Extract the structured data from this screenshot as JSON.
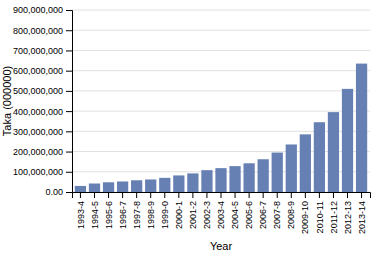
{
  "chart_data": {
    "type": "bar",
    "categories": [
      "1993-4",
      "1994-5",
      "1995-6",
      "1996-7",
      "1997-8",
      "1998-9",
      "1999-0",
      "2000-1",
      "2001-2",
      "2002-3",
      "2003-4",
      "2004-5",
      "2005-6",
      "2006-7",
      "2007-8",
      "2008-9",
      "2009-10",
      "2010-11",
      "2011-12",
      "2012-13",
      "2013-14"
    ],
    "values": [
      30000000,
      42000000,
      48000000,
      52000000,
      58000000,
      62000000,
      70000000,
      82000000,
      92000000,
      108000000,
      118000000,
      128000000,
      142000000,
      162000000,
      195000000,
      235000000,
      285000000,
      345000000,
      395000000,
      510000000,
      635000000
    ],
    "color": "#6680b3",
    "x_label": "Year",
    "y_label": "Taka (000000)",
    "ylim": [
      0,
      900000000
    ],
    "yticks": [
      {
        "value": 0,
        "label": "0.00"
      },
      {
        "value": 100000000,
        "label": "100,000,000"
      },
      {
        "value": 200000000,
        "label": "200,000,000"
      },
      {
        "value": 300000000,
        "label": "300,000,000"
      },
      {
        "value": 400000000,
        "label": "400,000,000"
      },
      {
        "value": 500000000,
        "label": "500,000,000"
      },
      {
        "value": 600000000,
        "label": "600,000,000"
      },
      {
        "value": 700000000,
        "label": "700,000,000"
      },
      {
        "value": 800000000,
        "label": "800,000,000"
      },
      {
        "value": 900000000,
        "label": "900,000,000"
      }
    ],
    "grid": true
  }
}
